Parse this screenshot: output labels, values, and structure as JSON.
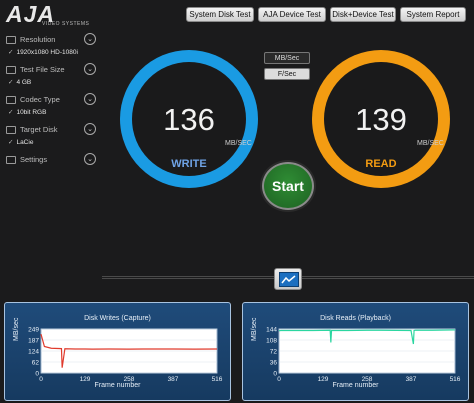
{
  "logo": {
    "word": "AJA",
    "sub": "VIDEO SYSTEMS"
  },
  "toolbar": [
    {
      "label": "System Disk Test",
      "name": "system-disk-test-button"
    },
    {
      "label": "AJA Device Test",
      "name": "aja-device-test-button"
    },
    {
      "label": "Disk+Device Test",
      "name": "disk-device-test-button"
    },
    {
      "label": "System Report",
      "name": "system-report-button"
    }
  ],
  "sidebar": {
    "resolution": {
      "label": "Resolution",
      "value": "1920x1080 HD-1080i"
    },
    "file_size": {
      "label": "Test File Size",
      "value": "4 GB"
    },
    "codec": {
      "label": "Codec Type",
      "value": "10bit RGB"
    },
    "target": {
      "label": "Target Disk",
      "value": "LaCie"
    },
    "settings": {
      "label": "Settings"
    },
    "check": "✓"
  },
  "units": {
    "mb": "MB/Sec",
    "fps": "F/Sec"
  },
  "write": {
    "value": "136",
    "unit": "MB/SEC",
    "label": "WRITE",
    "color": "#1a9be3"
  },
  "read": {
    "value": "139",
    "unit": "MB/SEC",
    "label": "READ",
    "color": "#f39c12"
  },
  "start_label": "Start",
  "chart_data": [
    {
      "type": "line",
      "title": "Disk Writes (Capture)",
      "xlabel": "Frame number",
      "ylabel": "MB/sec",
      "ylim": [
        0,
        249
      ],
      "yticks": [
        "249",
        "187",
        "124",
        "62",
        "0"
      ],
      "xticks": [
        "0",
        "129",
        "258",
        "387",
        "516"
      ],
      "series": [
        {
          "x": [
            0,
            10,
            30,
            60,
            62,
            70,
            100,
            129,
            150,
            200,
            258,
            300,
            387,
            450,
            516
          ],
          "values": [
            220,
            150,
            140,
            138,
            30,
            137,
            136,
            136,
            135,
            136,
            135,
            136,
            136,
            135,
            136
          ],
          "color": "#e03a2c"
        }
      ]
    },
    {
      "type": "line",
      "title": "Disk Reads (Playback)",
      "xlabel": "Frame number",
      "ylabel": "MB/sec",
      "ylim": [
        0,
        144
      ],
      "yticks": [
        "144",
        "108",
        "72",
        "36",
        "0"
      ],
      "xticks": [
        "0",
        "129",
        "258",
        "387",
        "516"
      ],
      "series": [
        {
          "x": [
            0,
            5,
            100,
            150,
            152,
            154,
            200,
            258,
            300,
            387,
            394,
            396,
            400,
            450,
            516
          ],
          "values": [
            138,
            139,
            139,
            140,
            100,
            139,
            139,
            140,
            140,
            139,
            95,
            139,
            140,
            140,
            141
          ],
          "color": "#2bd6a0"
        }
      ]
    }
  ]
}
